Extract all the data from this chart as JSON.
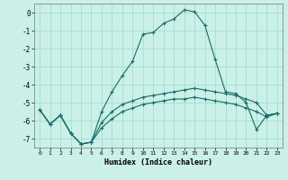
{
  "xlabel": "Humidex (Indice chaleur)",
  "bg_color": "#caf0e8",
  "line_color": "#1a6b6b",
  "grid_color": "#99ddcc",
  "xlim": [
    -0.5,
    23.5
  ],
  "ylim": [
    -7.5,
    0.5
  ],
  "yticks": [
    0,
    -1,
    -2,
    -3,
    -4,
    -5,
    -6,
    -7
  ],
  "xticks": [
    0,
    1,
    2,
    3,
    4,
    5,
    6,
    7,
    8,
    9,
    10,
    11,
    12,
    13,
    14,
    15,
    16,
    17,
    18,
    19,
    20,
    21,
    22,
    23
  ],
  "line_main_x": [
    0,
    1,
    2,
    3,
    4,
    5,
    6,
    7,
    8,
    9,
    10,
    11,
    12,
    13,
    14,
    15,
    16,
    17,
    18,
    19,
    20,
    21,
    22,
    23
  ],
  "line_main_y": [
    -5.4,
    -6.2,
    -5.7,
    -6.7,
    -7.3,
    -7.2,
    -5.5,
    -4.4,
    -3.5,
    -2.7,
    -1.2,
    -1.1,
    -0.6,
    -0.35,
    0.15,
    0.05,
    -0.7,
    -2.6,
    -4.4,
    -4.5,
    -5.0,
    -6.5,
    -5.7,
    -5.6
  ],
  "line_upper_x": [
    0,
    1,
    2,
    3,
    4,
    5,
    6,
    7,
    8,
    9,
    10,
    11,
    12,
    13,
    14,
    15,
    16,
    17,
    18,
    19,
    20,
    21,
    22,
    23
  ],
  "line_upper_y": [
    -5.4,
    -6.2,
    -5.7,
    -6.7,
    -7.3,
    -7.2,
    -6.1,
    -5.5,
    -5.1,
    -4.9,
    -4.7,
    -4.6,
    -4.5,
    -4.4,
    -4.3,
    -4.2,
    -4.3,
    -4.4,
    -4.5,
    -4.6,
    -4.8,
    -5.0,
    -5.7,
    -5.6
  ],
  "line_lower_x": [
    0,
    1,
    2,
    3,
    4,
    5,
    6,
    7,
    8,
    9,
    10,
    11,
    12,
    13,
    14,
    15,
    16,
    17,
    18,
    19,
    20,
    21,
    22,
    23
  ],
  "line_lower_y": [
    -5.4,
    -6.2,
    -5.7,
    -6.7,
    -7.3,
    -7.2,
    -6.4,
    -5.9,
    -5.5,
    -5.3,
    -5.1,
    -5.0,
    -4.9,
    -4.8,
    -4.8,
    -4.7,
    -4.8,
    -4.9,
    -5.0,
    -5.1,
    -5.3,
    -5.5,
    -5.8,
    -5.6
  ]
}
